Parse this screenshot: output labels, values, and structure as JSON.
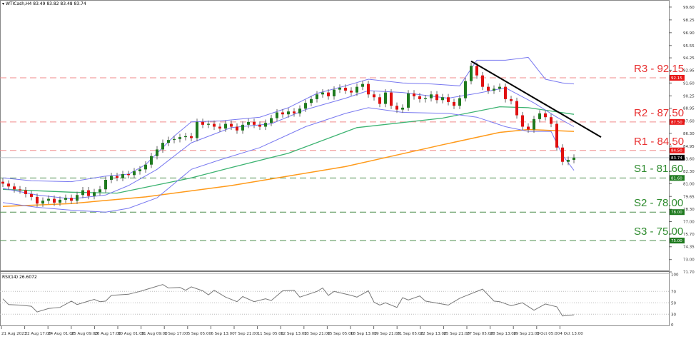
{
  "header": {
    "symbol": "WTICash,H4",
    "ohlc": "83.49 83.82 83.48 83.74"
  },
  "colors": {
    "bull": "#1f7a1f",
    "bear": "#e01010",
    "bollinger": "#7878f0",
    "ma_green": "#3cb371",
    "ma_orange": "#ff9a1a",
    "resistance": "#e83030",
    "support": "#2e8b2e",
    "trendline": "#000000"
  },
  "levels": [
    {
      "label": "R3 - 92.15",
      "value": 92.15,
      "tag": "92.15",
      "kind": "resistance"
    },
    {
      "label": "R2 - 87.50",
      "value": 87.5,
      "tag": "87.50",
      "kind": "resistance"
    },
    {
      "label": "R1 - 84.50",
      "value": 84.5,
      "tag": "84.50",
      "kind": "resistance"
    },
    {
      "label": "S1 - 81.60",
      "value": 81.6,
      "tag": "81.60",
      "kind": "support"
    },
    {
      "label": "S2 - 78.00",
      "value": 78.0,
      "tag": "78.00",
      "kind": "support"
    },
    {
      "label": "S3 - 75.00",
      "value": 75.0,
      "tag": "75.00",
      "kind": "support"
    }
  ],
  "current_price": {
    "value": 83.74,
    "tag": "83.74"
  },
  "rsi": {
    "label": "RSI(14) 26.6072",
    "ticks": [
      "100",
      "70",
      "50",
      "30",
      "0"
    ],
    "tick_values": [
      100,
      70,
      50,
      30,
      0
    ]
  },
  "chart_data": {
    "type": "candlestick",
    "title": "WTICash,H4",
    "price_ticks": [
      "99.60",
      "98.25",
      "96.90",
      "95.55",
      "94.25",
      "92.95",
      "91.60",
      "90.25",
      "88.95",
      "87.60",
      "86.30",
      "84.95",
      "83.60",
      "82.30",
      "81.00",
      "79.65",
      "78.30",
      "77.00",
      "75.70",
      "74.35",
      "73.00",
      "71.70"
    ],
    "x_ticks": [
      "21 Aug 2023",
      "22 Aug 17:00",
      "24 Aug 01:00",
      "25 Aug 09:00",
      "28 Aug 17:00",
      "30 Aug 01:00",
      "31 Aug 09:00",
      "1 Sep 17:00",
      "5 Sep 05:00",
      "6 Sep 13:00",
      "7 Sep 21:00",
      "11 Sep 05:00",
      "12 Sep 13:00",
      "13 Sep 21:00",
      "15 Sep 05:00",
      "18 Sep 13:00",
      "19 Sep 21:00",
      "21 Sep 05:00",
      "22 Sep 13:00",
      "25 Sep 21:00",
      "27 Sep 05:00",
      "28 Sep 13:00",
      "29 Sep 21:00",
      "3 Oct 05:00",
      "4 Oct 13:00"
    ],
    "closes": [
      81.0,
      80.7,
      80.4,
      80.3,
      79.9,
      79.6,
      78.9,
      79.2,
      79.4,
      79.0,
      79.3,
      79.5,
      79.2,
      79.8,
      80.3,
      79.7,
      80.1,
      80.4,
      81.4,
      81.8,
      81.6,
      82.0,
      81.9,
      82.3,
      82.5,
      83.0,
      83.9,
      84.6,
      85.3,
      85.6,
      85.7,
      85.9,
      86.0,
      85.8,
      87.5,
      87.2,
      87.3,
      87.0,
      86.8,
      87.3,
      87.0,
      86.6,
      87.2,
      87.5,
      87.2,
      87.0,
      87.4,
      87.9,
      88.5,
      88.3,
      88.6,
      88.4,
      88.9,
      89.5,
      89.9,
      90.4,
      90.6,
      90.2,
      90.9,
      91.1,
      90.8,
      90.6,
      91.2,
      91.5,
      90.4,
      90.1,
      89.4,
      90.6,
      89.2,
      88.8,
      89.0,
      90.5,
      90.2,
      89.9,
      90.0,
      90.4,
      89.8,
      90.1,
      89.6,
      89.2,
      90.0,
      91.8,
      93.4,
      92.4,
      91.2,
      90.8,
      91.0,
      91.2,
      89.9,
      89.7,
      88.2,
      87.0,
      86.7,
      87.8,
      88.4,
      88.0,
      87.3,
      84.8,
      83.3,
      83.5,
      83.74
    ],
    "ma_green": [
      [
        0,
        80.4
      ],
      [
        12,
        80.1
      ],
      [
        20,
        80.0
      ],
      [
        33,
        81.6
      ],
      [
        40,
        82.7
      ],
      [
        50,
        84.2
      ],
      [
        62,
        86.9
      ],
      [
        77,
        87.9
      ],
      [
        87,
        89.1
      ],
      [
        92,
        89.0
      ],
      [
        100,
        88.3
      ]
    ],
    "ma_orange": [
      [
        0,
        78.6
      ],
      [
        12,
        78.9
      ],
      [
        25,
        79.6
      ],
      [
        40,
        80.8
      ],
      [
        60,
        82.8
      ],
      [
        77,
        85.1
      ],
      [
        87,
        86.4
      ],
      [
        92,
        86.7
      ],
      [
        100,
        86.5
      ]
    ],
    "bollinger_upper": [
      [
        0,
        81.6
      ],
      [
        5,
        81.3
      ],
      [
        12,
        81.2
      ],
      [
        18,
        81.8
      ],
      [
        22,
        82.0
      ],
      [
        25,
        83.0
      ],
      [
        30,
        86.0
      ],
      [
        33,
        87.5
      ],
      [
        38,
        87.6
      ],
      [
        45,
        88.0
      ],
      [
        50,
        89.0
      ],
      [
        55,
        90.5
      ],
      [
        60,
        91.3
      ],
      [
        64,
        92.0
      ],
      [
        70,
        91.6
      ],
      [
        75,
        91.5
      ],
      [
        80,
        91.3
      ],
      [
        83,
        94.0
      ],
      [
        88,
        94.0
      ],
      [
        92,
        94.3
      ],
      [
        95,
        92.0
      ],
      [
        98,
        91.6
      ],
      [
        100,
        91.5
      ]
    ],
    "bollinger_middle": [
      [
        0,
        80.5
      ],
      [
        6,
        79.8
      ],
      [
        12,
        79.4
      ],
      [
        18,
        79.8
      ],
      [
        22,
        80.8
      ],
      [
        27,
        82.5
      ],
      [
        33,
        85.3
      ],
      [
        40,
        86.9
      ],
      [
        47,
        87.3
      ],
      [
        53,
        88.8
      ],
      [
        60,
        90.0
      ],
      [
        64,
        90.8
      ],
      [
        70,
        90.6
      ],
      [
        78,
        90.0
      ],
      [
        83,
        90.5
      ],
      [
        88,
        91.1
      ],
      [
        93,
        89.5
      ],
      [
        97,
        88.0
      ],
      [
        100,
        87.0
      ]
    ],
    "bollinger_lower": [
      [
        0,
        79.0
      ],
      [
        6,
        78.5
      ],
      [
        12,
        78.2
      ],
      [
        18,
        78.0
      ],
      [
        22,
        78.4
      ],
      [
        27,
        79.5
      ],
      [
        33,
        82.5
      ],
      [
        38,
        83.5
      ],
      [
        45,
        84.8
      ],
      [
        53,
        87.0
      ],
      [
        60,
        88.4
      ],
      [
        64,
        89.0
      ],
      [
        70,
        88.5
      ],
      [
        78,
        88.4
      ],
      [
        83,
        88.0
      ],
      [
        88,
        87.0
      ],
      [
        92,
        86.5
      ],
      [
        96,
        86.5
      ],
      [
        98,
        84.0
      ],
      [
        100,
        82.4
      ]
    ],
    "trendline": [
      [
        82,
        93.9
      ],
      [
        104.75,
        85.9
      ]
    ],
    "rsi": [
      [
        0,
        57
      ],
      [
        1,
        47
      ],
      [
        3,
        46
      ],
      [
        5,
        44
      ],
      [
        6,
        34
      ],
      [
        8,
        40
      ],
      [
        10,
        42
      ],
      [
        12,
        53
      ],
      [
        13,
        47
      ],
      [
        16,
        56
      ],
      [
        17,
        52
      ],
      [
        18,
        53
      ],
      [
        19,
        63
      ],
      [
        22,
        65
      ],
      [
        24,
        70
      ],
      [
        25,
        73
      ],
      [
        28,
        82
      ],
      [
        29,
        76
      ],
      [
        31,
        77
      ],
      [
        32,
        72
      ],
      [
        33,
        78
      ],
      [
        35,
        71
      ],
      [
        36,
        64
      ],
      [
        37,
        72
      ],
      [
        39,
        60
      ],
      [
        41,
        52
      ],
      [
        42,
        61
      ],
      [
        44,
        52
      ],
      [
        46,
        57
      ],
      [
        47,
        54
      ],
      [
        49,
        71
      ],
      [
        51,
        72
      ],
      [
        52,
        60
      ],
      [
        55,
        70
      ],
      [
        56,
        76
      ],
      [
        57,
        63
      ],
      [
        58,
        70
      ],
      [
        61,
        63
      ],
      [
        62,
        60
      ],
      [
        64,
        71
      ],
      [
        65,
        51
      ],
      [
        66,
        46
      ],
      [
        67,
        50
      ],
      [
        69,
        42
      ],
      [
        70,
        59
      ],
      [
        71,
        55
      ],
      [
        73,
        62
      ],
      [
        74,
        53
      ],
      [
        78,
        46
      ],
      [
        80,
        58
      ],
      [
        81,
        62
      ],
      [
        84,
        74
      ],
      [
        86,
        53
      ],
      [
        87,
        52
      ],
      [
        89,
        45
      ],
      [
        91,
        50
      ],
      [
        93,
        37
      ],
      [
        95,
        48
      ],
      [
        97,
        43
      ],
      [
        98,
        27
      ],
      [
        100,
        29
      ]
    ]
  }
}
